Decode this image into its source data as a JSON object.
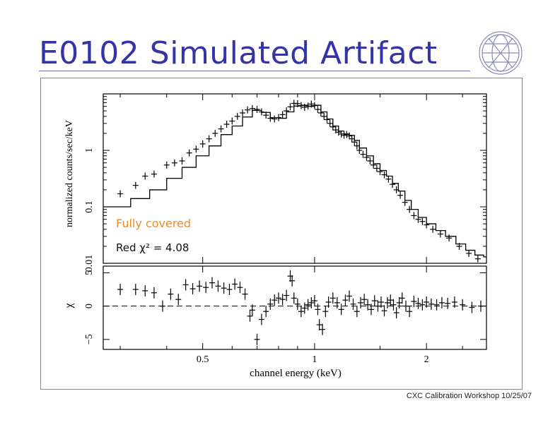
{
  "slide": {
    "title": "E0102 Simulated Artifact",
    "footer": "CXC Calibration Workshop 10/25/07"
  },
  "logo": {
    "name": "chandra-logo-icon"
  },
  "colors": {
    "title": "#3434a8",
    "annotation_title": "#f08a1e",
    "axis": "#000000"
  },
  "chart_data": {
    "type": "line",
    "panels": [
      {
        "name": "spectrum",
        "ylabel": "normalized counts/sec/keV",
        "yscale": "log",
        "ylim": [
          0.01,
          10
        ],
        "yticks": [
          0.01,
          0.1,
          1
        ],
        "ytick_labels": [
          "0.01",
          "0.1",
          "1"
        ],
        "annotations": [
          "Fully covered",
          "Red χ² = 4.08"
        ],
        "data_points": [
          [
            0.3,
            0.17
          ],
          [
            0.33,
            0.24
          ],
          [
            0.35,
            0.35
          ],
          [
            0.37,
            0.38
          ],
          [
            0.4,
            0.55
          ],
          [
            0.42,
            0.6
          ],
          [
            0.44,
            0.65
          ],
          [
            0.46,
            0.9
          ],
          [
            0.48,
            1.05
          ],
          [
            0.5,
            1.3
          ],
          [
            0.52,
            1.6
          ],
          [
            0.54,
            2.0
          ],
          [
            0.56,
            2.4
          ],
          [
            0.58,
            2.9
          ],
          [
            0.6,
            3.3
          ],
          [
            0.62,
            4.0
          ],
          [
            0.64,
            4.6
          ],
          [
            0.66,
            5.2
          ],
          [
            0.68,
            5.5
          ],
          [
            0.7,
            5.3
          ],
          [
            0.72,
            4.8
          ],
          [
            0.74,
            4.2
          ],
          [
            0.76,
            3.7
          ],
          [
            0.78,
            3.6
          ],
          [
            0.8,
            3.8
          ],
          [
            0.82,
            4.3
          ],
          [
            0.84,
            5.0
          ],
          [
            0.86,
            5.9
          ],
          [
            0.88,
            6.8
          ],
          [
            0.9,
            6.7
          ],
          [
            0.92,
            6.2
          ],
          [
            0.94,
            5.8
          ],
          [
            0.96,
            6.1
          ],
          [
            0.98,
            6.6
          ],
          [
            1.0,
            6.2
          ],
          [
            1.02,
            5.3
          ],
          [
            1.04,
            4.6
          ],
          [
            1.06,
            4.0
          ],
          [
            1.08,
            3.5
          ],
          [
            1.1,
            3.0
          ],
          [
            1.12,
            2.6
          ],
          [
            1.14,
            2.3
          ],
          [
            1.16,
            2.1
          ],
          [
            1.18,
            1.95
          ],
          [
            1.2,
            1.85
          ],
          [
            1.22,
            1.9
          ],
          [
            1.24,
            1.8
          ],
          [
            1.26,
            1.6
          ],
          [
            1.28,
            1.4
          ],
          [
            1.3,
            1.2
          ],
          [
            1.32,
            1.0
          ],
          [
            1.35,
            0.85
          ],
          [
            1.38,
            0.75
          ],
          [
            1.41,
            0.65
          ],
          [
            1.44,
            0.55
          ],
          [
            1.47,
            0.48
          ],
          [
            1.5,
            0.42
          ],
          [
            1.54,
            0.37
          ],
          [
            1.58,
            0.31
          ],
          [
            1.62,
            0.25
          ],
          [
            1.66,
            0.2
          ],
          [
            1.7,
            0.16
          ],
          [
            1.75,
            0.12
          ],
          [
            1.8,
            0.09
          ],
          [
            1.85,
            0.07
          ],
          [
            1.9,
            0.06
          ],
          [
            1.95,
            0.055
          ],
          [
            2.0,
            0.048
          ],
          [
            2.08,
            0.04
          ],
          [
            2.18,
            0.033
          ],
          [
            2.3,
            0.028
          ],
          [
            2.45,
            0.02
          ],
          [
            2.6,
            0.015
          ],
          [
            2.75,
            0.012
          ]
        ],
        "model_steps": [
          [
            0.27,
            0.1
          ],
          [
            0.32,
            0.14
          ],
          [
            0.36,
            0.2
          ],
          [
            0.4,
            0.32
          ],
          [
            0.44,
            0.5
          ],
          [
            0.48,
            0.8
          ],
          [
            0.52,
            1.2
          ],
          [
            0.56,
            1.9
          ],
          [
            0.6,
            2.7
          ],
          [
            0.64,
            3.9
          ],
          [
            0.68,
            5.1
          ],
          [
            0.72,
            4.7
          ],
          [
            0.76,
            3.8
          ],
          [
            0.8,
            3.7
          ],
          [
            0.84,
            4.8
          ],
          [
            0.88,
            6.1
          ],
          [
            0.92,
            6.3
          ],
          [
            0.96,
            6.0
          ],
          [
            1.0,
            6.3
          ],
          [
            1.04,
            4.8
          ],
          [
            1.08,
            3.6
          ],
          [
            1.12,
            2.7
          ],
          [
            1.16,
            2.2
          ],
          [
            1.2,
            1.95
          ],
          [
            1.24,
            1.85
          ],
          [
            1.28,
            1.5
          ],
          [
            1.32,
            1.1
          ],
          [
            1.38,
            0.8
          ],
          [
            1.44,
            0.58
          ],
          [
            1.5,
            0.44
          ],
          [
            1.56,
            0.35
          ],
          [
            1.62,
            0.26
          ],
          [
            1.68,
            0.19
          ],
          [
            1.75,
            0.13
          ],
          [
            1.82,
            0.09
          ],
          [
            1.9,
            0.065
          ],
          [
            2.0,
            0.05
          ],
          [
            2.12,
            0.038
          ],
          [
            2.25,
            0.03
          ],
          [
            2.4,
            0.022
          ],
          [
            2.55,
            0.017
          ],
          [
            2.7,
            0.014
          ],
          [
            2.85,
            0.013
          ]
        ]
      },
      {
        "name": "residuals",
        "ylabel": "χ",
        "ylim": [
          -6.5,
          6
        ],
        "yticks": [
          -5,
          0,
          5
        ],
        "ytick_labels": [
          "−5",
          "0",
          "5"
        ],
        "xlabel": "channel energy (keV)",
        "xscale": "log",
        "xlim": [
          0.27,
          2.9
        ],
        "xticks": [
          0.5,
          1,
          2
        ],
        "xtick_labels": [
          "0.5",
          "1",
          "2"
        ],
        "data_points": [
          [
            0.3,
            2.5
          ],
          [
            0.33,
            2.5
          ],
          [
            0.35,
            2.3
          ],
          [
            0.37,
            2.0
          ],
          [
            0.39,
            0.0
          ],
          [
            0.41,
            1.8
          ],
          [
            0.43,
            1.0
          ],
          [
            0.45,
            3.2
          ],
          [
            0.47,
            2.6
          ],
          [
            0.49,
            3.0
          ],
          [
            0.51,
            2.8
          ],
          [
            0.53,
            3.5
          ],
          [
            0.55,
            3.0
          ],
          [
            0.57,
            2.7
          ],
          [
            0.59,
            2.5
          ],
          [
            0.61,
            3.3
          ],
          [
            0.63,
            2.8
          ],
          [
            0.65,
            1.8
          ],
          [
            0.67,
            -1.5
          ],
          [
            0.68,
            -0.6
          ],
          [
            0.7,
            -5.0
          ],
          [
            0.72,
            -2.0
          ],
          [
            0.74,
            -0.8
          ],
          [
            0.76,
            0.3
          ],
          [
            0.78,
            0.9
          ],
          [
            0.8,
            1.2
          ],
          [
            0.82,
            1.0
          ],
          [
            0.84,
            1.6
          ],
          [
            0.86,
            4.5
          ],
          [
            0.87,
            3.8
          ],
          [
            0.88,
            1.2
          ],
          [
            0.9,
            0.3
          ],
          [
            0.92,
            -0.8
          ],
          [
            0.94,
            -0.3
          ],
          [
            0.96,
            0.2
          ],
          [
            0.98,
            0.5
          ],
          [
            1.0,
            0.8
          ],
          [
            1.02,
            -0.5
          ],
          [
            1.03,
            -2.8
          ],
          [
            1.05,
            -3.5
          ],
          [
            1.07,
            -0.8
          ],
          [
            1.09,
            0.6
          ],
          [
            1.12,
            1.2
          ],
          [
            1.15,
            0.5
          ],
          [
            1.18,
            -0.5
          ],
          [
            1.21,
            0.9
          ],
          [
            1.24,
            1.5
          ],
          [
            1.27,
            0.3
          ],
          [
            1.3,
            -0.8
          ],
          [
            1.33,
            0.5
          ],
          [
            1.36,
            1.0
          ],
          [
            1.39,
            0.2
          ],
          [
            1.42,
            -0.5
          ],
          [
            1.45,
            0.8
          ],
          [
            1.48,
            0.0
          ],
          [
            1.51,
            0.6
          ],
          [
            1.54,
            -0.7
          ],
          [
            1.57,
            0.5
          ],
          [
            1.6,
            0.9
          ],
          [
            1.63,
            0.2
          ],
          [
            1.66,
            -1.0
          ],
          [
            1.69,
            0.5
          ],
          [
            1.72,
            1.2
          ],
          [
            1.76,
            0.0
          ],
          [
            1.8,
            -0.8
          ],
          [
            1.85,
            0.7
          ],
          [
            1.9,
            0.4
          ],
          [
            1.95,
            0.2
          ],
          [
            2.0,
            0.6
          ],
          [
            2.06,
            0.3
          ],
          [
            2.13,
            0.2
          ],
          [
            2.2,
            0.5
          ],
          [
            2.28,
            0.4
          ],
          [
            2.38,
            0.6
          ],
          [
            2.5,
            0.2
          ],
          [
            2.65,
            -0.2
          ],
          [
            2.8,
            0.0
          ]
        ]
      }
    ],
    "grid": false,
    "legend": "none"
  }
}
